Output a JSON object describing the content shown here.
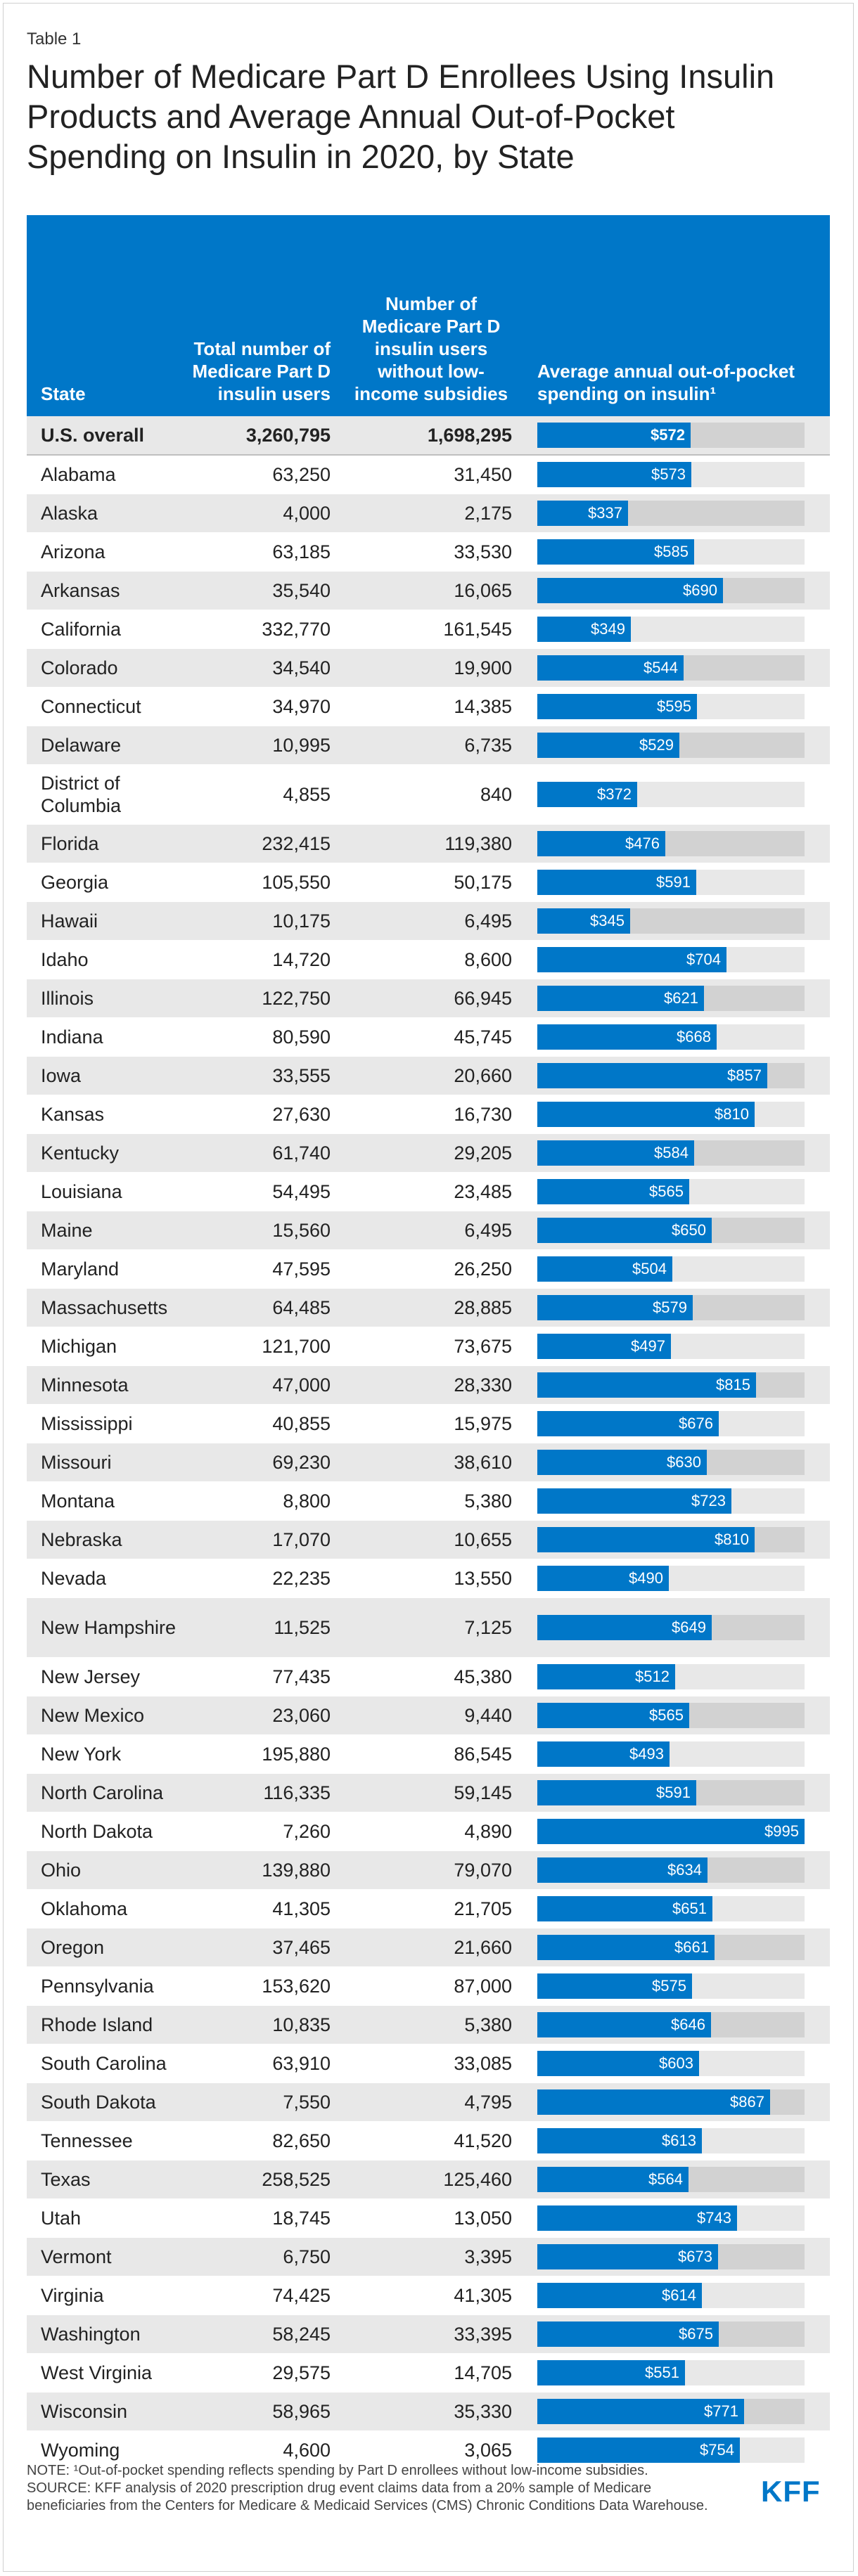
{
  "header": {
    "table_label": "Table 1",
    "title": "Number of Medicare Part D Enrollees Using Insulin Products and Average Annual Out-of-Pocket Spending on Insulin in 2020, by State"
  },
  "columns": {
    "state": "State",
    "total": "Total number of Medicare Part D insulin users",
    "no_lis": "Number of Medicare Part D insulin users without low-income subsidies",
    "avg": "Average annual out-of-pocket spending on insulin¹"
  },
  "chart_data": {
    "type": "table",
    "title": "Number of Medicare Part D Enrollees Using Insulin Products and Average Annual Out-of-Pocket Spending on Insulin in 2020, by State",
    "bar_max": 995,
    "rows": [
      {
        "state": "U.S. overall",
        "total": "3,260,795",
        "no_lis": "1,698,295",
        "avg": 572,
        "avg_label": "$572"
      },
      {
        "state": "Alabama",
        "total": "63,250",
        "no_lis": "31,450",
        "avg": 573,
        "avg_label": "$573"
      },
      {
        "state": "Alaska",
        "total": "4,000",
        "no_lis": "2,175",
        "avg": 337,
        "avg_label": "$337"
      },
      {
        "state": "Arizona",
        "total": "63,185",
        "no_lis": "33,530",
        "avg": 585,
        "avg_label": "$585"
      },
      {
        "state": "Arkansas",
        "total": "35,540",
        "no_lis": "16,065",
        "avg": 690,
        "avg_label": "$690"
      },
      {
        "state": "California",
        "total": "332,770",
        "no_lis": "161,545",
        "avg": 349,
        "avg_label": "$349"
      },
      {
        "state": "Colorado",
        "total": "34,540",
        "no_lis": "19,900",
        "avg": 544,
        "avg_label": "$544"
      },
      {
        "state": "Connecticut",
        "total": "34,970",
        "no_lis": "14,385",
        "avg": 595,
        "avg_label": "$595"
      },
      {
        "state": "Delaware",
        "total": "10,995",
        "no_lis": "6,735",
        "avg": 529,
        "avg_label": "$529"
      },
      {
        "state": "District of Columbia",
        "total": "4,855",
        "no_lis": "840",
        "avg": 372,
        "avg_label": "$372"
      },
      {
        "state": "Florida",
        "total": "232,415",
        "no_lis": "119,380",
        "avg": 476,
        "avg_label": "$476"
      },
      {
        "state": "Georgia",
        "total": "105,550",
        "no_lis": "50,175",
        "avg": 591,
        "avg_label": "$591"
      },
      {
        "state": "Hawaii",
        "total": "10,175",
        "no_lis": "6,495",
        "avg": 345,
        "avg_label": "$345"
      },
      {
        "state": "Idaho",
        "total": "14,720",
        "no_lis": "8,600",
        "avg": 704,
        "avg_label": "$704"
      },
      {
        "state": "Illinois",
        "total": "122,750",
        "no_lis": "66,945",
        "avg": 621,
        "avg_label": "$621"
      },
      {
        "state": "Indiana",
        "total": "80,590",
        "no_lis": "45,745",
        "avg": 668,
        "avg_label": "$668"
      },
      {
        "state": "Iowa",
        "total": "33,555",
        "no_lis": "20,660",
        "avg": 857,
        "avg_label": "$857"
      },
      {
        "state": "Kansas",
        "total": "27,630",
        "no_lis": "16,730",
        "avg": 810,
        "avg_label": "$810"
      },
      {
        "state": "Kentucky",
        "total": "61,740",
        "no_lis": "29,205",
        "avg": 584,
        "avg_label": "$584"
      },
      {
        "state": "Louisiana",
        "total": "54,495",
        "no_lis": "23,485",
        "avg": 565,
        "avg_label": "$565"
      },
      {
        "state": "Maine",
        "total": "15,560",
        "no_lis": "6,495",
        "avg": 650,
        "avg_label": "$650"
      },
      {
        "state": "Maryland",
        "total": "47,595",
        "no_lis": "26,250",
        "avg": 504,
        "avg_label": "$504"
      },
      {
        "state": "Massachusetts",
        "total": "64,485",
        "no_lis": "28,885",
        "avg": 579,
        "avg_label": "$579"
      },
      {
        "state": "Michigan",
        "total": "121,700",
        "no_lis": "73,675",
        "avg": 497,
        "avg_label": "$497"
      },
      {
        "state": "Minnesota",
        "total": "47,000",
        "no_lis": "28,330",
        "avg": 815,
        "avg_label": "$815"
      },
      {
        "state": "Mississippi",
        "total": "40,855",
        "no_lis": "15,975",
        "avg": 676,
        "avg_label": "$676"
      },
      {
        "state": "Missouri",
        "total": "69,230",
        "no_lis": "38,610",
        "avg": 630,
        "avg_label": "$630"
      },
      {
        "state": "Montana",
        "total": "8,800",
        "no_lis": "5,380",
        "avg": 723,
        "avg_label": "$723"
      },
      {
        "state": "Nebraska",
        "total": "17,070",
        "no_lis": "10,655",
        "avg": 810,
        "avg_label": "$810"
      },
      {
        "state": "Nevada",
        "total": "22,235",
        "no_lis": "13,550",
        "avg": 490,
        "avg_label": "$490"
      },
      {
        "state": "New Hampshire",
        "total": "11,525",
        "no_lis": "7,125",
        "avg": 649,
        "avg_label": "$649"
      },
      {
        "state": "New Jersey",
        "total": "77,435",
        "no_lis": "45,380",
        "avg": 512,
        "avg_label": "$512"
      },
      {
        "state": "New Mexico",
        "total": "23,060",
        "no_lis": "9,440",
        "avg": 565,
        "avg_label": "$565"
      },
      {
        "state": "New York",
        "total": "195,880",
        "no_lis": "86,545",
        "avg": 493,
        "avg_label": "$493"
      },
      {
        "state": "North Carolina",
        "total": "116,335",
        "no_lis": "59,145",
        "avg": 591,
        "avg_label": "$591"
      },
      {
        "state": "North Dakota",
        "total": "7,260",
        "no_lis": "4,890",
        "avg": 995,
        "avg_label": "$995"
      },
      {
        "state": "Ohio",
        "total": "139,880",
        "no_lis": "79,070",
        "avg": 634,
        "avg_label": "$634"
      },
      {
        "state": "Oklahoma",
        "total": "41,305",
        "no_lis": "21,705",
        "avg": 651,
        "avg_label": "$651"
      },
      {
        "state": "Oregon",
        "total": "37,465",
        "no_lis": "21,660",
        "avg": 661,
        "avg_label": "$661"
      },
      {
        "state": "Pennsylvania",
        "total": "153,620",
        "no_lis": "87,000",
        "avg": 575,
        "avg_label": "$575"
      },
      {
        "state": "Rhode Island",
        "total": "10,835",
        "no_lis": "5,380",
        "avg": 646,
        "avg_label": "$646"
      },
      {
        "state": "South Carolina",
        "total": "63,910",
        "no_lis": "33,085",
        "avg": 603,
        "avg_label": "$603"
      },
      {
        "state": "South Dakota",
        "total": "7,550",
        "no_lis": "4,795",
        "avg": 867,
        "avg_label": "$867"
      },
      {
        "state": "Tennessee",
        "total": "82,650",
        "no_lis": "41,520",
        "avg": 613,
        "avg_label": "$613"
      },
      {
        "state": "Texas",
        "total": "258,525",
        "no_lis": "125,460",
        "avg": 564,
        "avg_label": "$564"
      },
      {
        "state": "Utah",
        "total": "18,745",
        "no_lis": "13,050",
        "avg": 743,
        "avg_label": "$743"
      },
      {
        "state": "Vermont",
        "total": "6,750",
        "no_lis": "3,395",
        "avg": 673,
        "avg_label": "$673"
      },
      {
        "state": "Virginia",
        "total": "74,425",
        "no_lis": "41,305",
        "avg": 614,
        "avg_label": "$614"
      },
      {
        "state": "Washington",
        "total": "58,245",
        "no_lis": "33,395",
        "avg": 675,
        "avg_label": "$675"
      },
      {
        "state": "West Virginia",
        "total": "29,575",
        "no_lis": "14,705",
        "avg": 551,
        "avg_label": "$551"
      },
      {
        "state": "Wisconsin",
        "total": "58,965",
        "no_lis": "35,330",
        "avg": 771,
        "avg_label": "$771"
      },
      {
        "state": "Wyoming",
        "total": "4,600",
        "no_lis": "3,065",
        "avg": 754,
        "avg_label": "$754"
      }
    ]
  },
  "footer": {
    "note": "NOTE: ¹Out-of-pocket spending reflects spending by Part D enrollees without low-income subsidies.",
    "source": "SOURCE: KFF analysis of 2020 prescription drug event claims data from a 20% sample of Medicare beneficiaries from the Centers for Medicare & Medicaid Services (CMS) Chronic Conditions Data Warehouse.",
    "logo": "KFF"
  },
  "colors": {
    "accent": "#0077c8",
    "stripe": "#e8e8e8"
  }
}
